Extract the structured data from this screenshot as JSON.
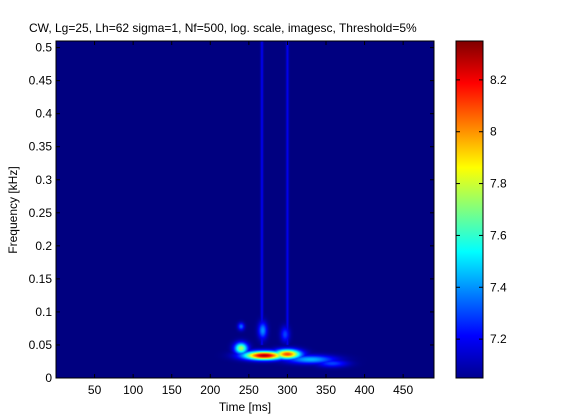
{
  "chart_data": {
    "type": "heatmap",
    "title": "CW, Lg=25, Lh=62 sigma=1, Nf=500, log. scale, imagesc, Threshold=5%",
    "xlabel": "Time [ms]",
    "ylabel": "Frequency [kHz]",
    "xlim": [
      0,
      490
    ],
    "ylim": [
      0,
      0.51
    ],
    "xticks": [
      50,
      100,
      150,
      200,
      250,
      300,
      350,
      400,
      450
    ],
    "xtick_labels": [
      "50",
      "100",
      "150",
      "200",
      "250",
      "300",
      "350",
      "400",
      "450"
    ],
    "yticks": [
      0,
      0.05,
      0.1,
      0.15,
      0.2,
      0.25,
      0.3,
      0.35,
      0.4,
      0.45,
      0.5
    ],
    "ytick_labels": [
      "0",
      "0.05",
      "0.1",
      "0.15",
      "0.2",
      "0.25",
      "0.3",
      "0.35",
      "0.4",
      "0.45",
      "0.5"
    ],
    "colorscale": "jet",
    "clim": [
      7.05,
      8.35
    ],
    "colorbar_ticks": [
      7.2,
      7.4,
      7.6,
      7.8,
      8,
      8.2
    ],
    "colorbar_tick_labels": [
      "7.2",
      "7.4",
      "7.6",
      "7.8",
      "8",
      "8.2"
    ],
    "blobs": [
      {
        "t": 270,
        "f": 0.034,
        "sigma_t": 18,
        "sigma_f": 0.0045,
        "value": 8.3
      },
      {
        "t": 300,
        "f": 0.036,
        "sigma_t": 12,
        "sigma_f": 0.005,
        "value": 8.1
      },
      {
        "t": 240,
        "f": 0.045,
        "sigma_t": 6,
        "sigma_f": 0.006,
        "value": 7.75
      },
      {
        "t": 330,
        "f": 0.028,
        "sigma_t": 22,
        "sigma_f": 0.0045,
        "value": 7.45
      },
      {
        "t": 358,
        "f": 0.022,
        "sigma_t": 14,
        "sigma_f": 0.004,
        "value": 7.3
      },
      {
        "t": 268,
        "f": 0.072,
        "sigma_t": 4,
        "sigma_f": 0.009,
        "value": 7.4
      },
      {
        "t": 297,
        "f": 0.066,
        "sigma_t": 4,
        "sigma_f": 0.008,
        "value": 7.3
      },
      {
        "t": 240,
        "f": 0.078,
        "sigma_t": 3,
        "sigma_f": 0.004,
        "value": 7.35
      }
    ],
    "vertical_lines": [
      {
        "t": 267,
        "f_min": 0.05,
        "f_max": 0.51,
        "value": 7.2
      },
      {
        "t": 300,
        "f_min": 0.05,
        "f_max": 0.51,
        "value": 7.2
      }
    ]
  }
}
